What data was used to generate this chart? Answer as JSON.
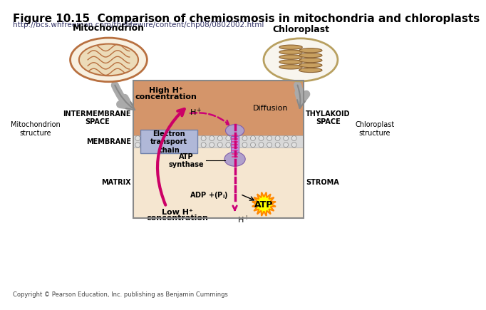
{
  "title": "Figure 10.15  Comparison of chemiosmosis in mitochondria and chloroplasts",
  "url": "http://bcs.whfreeman.com/thelifewire/content/chp08/0802002.html",
  "copyright": "Copyright © Pearson Education, Inc. publishing as Benjamin Cummings",
  "bg_color": "#ffffff",
  "upper_region_color": "#d4956a",
  "lower_region_color": "#f5e6d0",
  "etc_box_color": "#b0b8d8",
  "atp_synthase_color": "#b0a0cc",
  "arrow_pink": "#cc0066",
  "arrow_dashed": "#cc0077",
  "atp_burst_color": "#ffff00",
  "atp_burst_border": "#ff8800",
  "labels": {
    "mitochondrion": "Mitochondrion",
    "chloroplast": "Chloroplast",
    "high_h": "High H⁺",
    "concentration": "concentration",
    "low_h": "Low H⁺",
    "low_concentration": "concentration",
    "diffusion": "Diffusion",
    "intermembrane": "INTERMEMBRANE\nSPACE",
    "membrane": "MEMBRANE",
    "matrix": "MATRIX",
    "thylakoid": "THYLAKOID\nSPACE",
    "stroma": "STROMA",
    "mito_structure": "Mitochondrion\nstructure",
    "chloro_structure": "Chloroplast\nstructure",
    "etc": "Electron\ntransport\nchain",
    "atp_synthase": "ATP\nsynthase",
    "atp": "ATP"
  }
}
